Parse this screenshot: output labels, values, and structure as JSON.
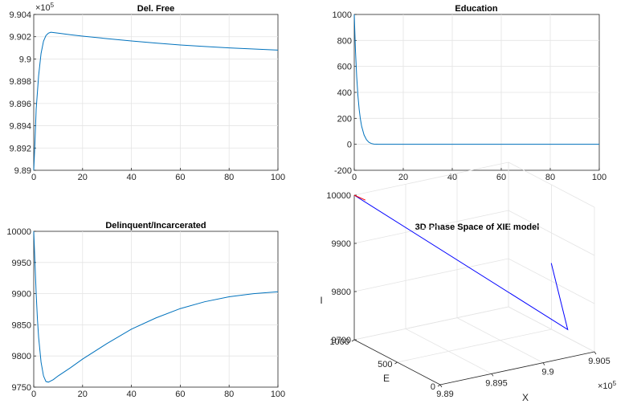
{
  "chart_data": [
    {
      "type": "line",
      "title": "Del. Free",
      "xlabel": "",
      "ylabel": "",
      "exponent_label": "×10",
      "exponent_power": "5",
      "xlim": [
        0,
        100
      ],
      "ylim": [
        9.89,
        9.904
      ],
      "xticks": [
        "0",
        "20",
        "40",
        "60",
        "80",
        "100"
      ],
      "yticks": [
        "9.89",
        "9.892",
        "9.894",
        "9.896",
        "9.898",
        "9.9",
        "9.902",
        "9.904"
      ],
      "grid": true,
      "color": "#0072BD",
      "series": [
        {
          "x": [
            0,
            0.5,
            1,
            2,
            3,
            4,
            5,
            6,
            7,
            8,
            10,
            15,
            20,
            30,
            40,
            50,
            60,
            70,
            80,
            90,
            100
          ],
          "y": [
            9.89,
            9.8925,
            9.8955,
            9.8985,
            9.9005,
            9.9016,
            9.9021,
            9.90232,
            9.9024,
            9.90238,
            9.90232,
            9.90218,
            9.90205,
            9.90183,
            9.90162,
            9.90143,
            9.90126,
            9.90112,
            9.901,
            9.9009,
            9.9008
          ]
        }
      ]
    },
    {
      "type": "line",
      "title": "Education",
      "xlabel": "",
      "ylabel": "",
      "xlim": [
        0,
        100
      ],
      "ylim": [
        -200,
        1000
      ],
      "xticks": [
        "0",
        "20",
        "40",
        "60",
        "80",
        "100"
      ],
      "yticks": [
        "-200",
        "0",
        "200",
        "400",
        "600",
        "800",
        "1000"
      ],
      "grid": true,
      "color": "#0072BD",
      "series": [
        {
          "x": [
            0,
            0.5,
            1,
            1.5,
            2,
            2.5,
            3,
            4,
            5,
            6,
            7,
            8,
            10,
            20,
            40,
            60,
            80,
            100
          ],
          "y": [
            1000,
            720,
            520,
            375,
            270,
            195,
            140,
            72,
            35,
            15,
            6,
            2,
            0,
            0,
            0,
            0,
            0,
            0
          ]
        }
      ]
    },
    {
      "type": "line",
      "title": "Delinquent/Incarcerated",
      "xlabel": "",
      "ylabel": "",
      "xlim": [
        0,
        100
      ],
      "ylim": [
        9750,
        10000
      ],
      "xticks": [
        "0",
        "20",
        "40",
        "60",
        "80",
        "100"
      ],
      "yticks": [
        "9750",
        "9800",
        "9850",
        "9900",
        "9950",
        "10000"
      ],
      "grid": true,
      "color": "#0072BD",
      "series": [
        {
          "x": [
            0,
            0.5,
            1,
            1.5,
            2,
            3,
            4,
            5,
            6,
            8,
            10,
            15,
            20,
            30,
            40,
            50,
            60,
            70,
            80,
            90,
            100
          ],
          "y": [
            10000,
            9950,
            9900,
            9860,
            9830,
            9790,
            9768,
            9759,
            9758,
            9762,
            9768,
            9781,
            9795,
            9820,
            9843,
            9861,
            9876,
            9887,
            9895,
            9900,
            9903
          ]
        }
      ]
    },
    {
      "type": "line3d",
      "title": "3D Phase Space of XIE model",
      "xlabel": "X",
      "ylabel": "E",
      "zlabel": "I",
      "exponent_label": "×10",
      "exponent_power": "5",
      "xlim": [
        9.89,
        9.905
      ],
      "ylim": [
        0,
        1000
      ],
      "zlim": [
        9700,
        10000
      ],
      "xticks": [
        "9.89",
        "9.895",
        "9.9",
        "9.905"
      ],
      "yticks": [
        "0",
        "500",
        "1000"
      ],
      "zticks": [
        "9700",
        "9800",
        "9900",
        "10000"
      ],
      "grid": true,
      "series": [
        {
          "name": "",
          "color": "#0000FF",
          "points": [
            [
              9.89,
              1000,
              10000
            ],
            [
              9.9024,
              0,
              9758
            ],
            [
              9.9008,
              0,
              9903
            ]
          ]
        },
        {
          "name": "",
          "color": "#FF0000",
          "points": [
            [
              9.89,
              1000,
              10000
            ],
            [
              9.8905,
              930,
              9994
            ]
          ]
        }
      ]
    }
  ]
}
